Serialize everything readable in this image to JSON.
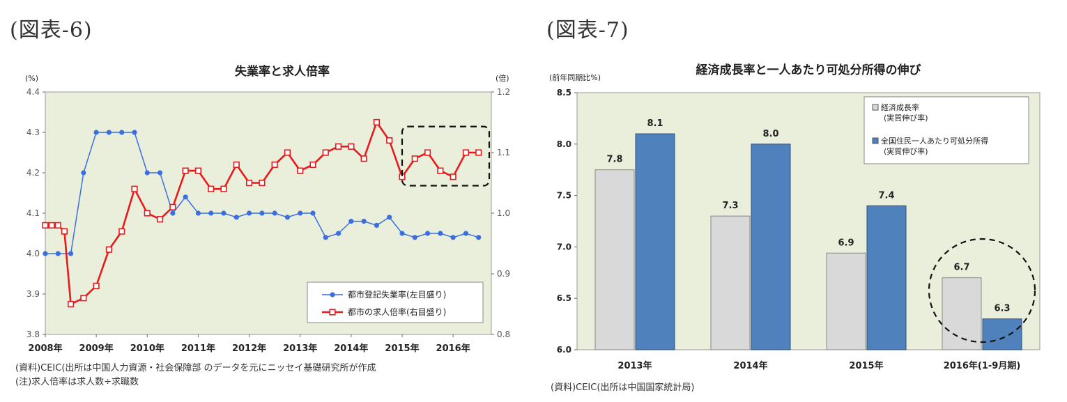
{
  "figure6_label": "(図表-6)",
  "figure7_label": "(図表-7)",
  "chart_data": [
    {
      "type": "line",
      "title": "失業率と求人倍率",
      "left_unit": "(%)",
      "right_unit": "(倍)",
      "ylim_left": [
        3.8,
        4.4
      ],
      "ylim_right": [
        0.8,
        1.2
      ],
      "y_ticks_left": [
        "3.8",
        "3.9",
        "4.0",
        "4.1",
        "4.2",
        "4.3",
        "4.4"
      ],
      "y_ticks_right": [
        "0.8",
        "0.9",
        "1.0",
        "1.1",
        "1.2"
      ],
      "x_ticks": [
        "2008年",
        "2009年",
        "2010年",
        "2011年",
        "2012年",
        "2013年",
        "2014年",
        "2015年",
        "2016年"
      ],
      "x_start": 2008.0,
      "x_end": 2016.75,
      "legend_position": "bottom-right",
      "series": [
        {
          "name": "都市登記失業率(左目盛り)",
          "axis": "left",
          "color": "#3b6fe0",
          "marker": "circle",
          "x": [
            2008.0,
            2008.25,
            2008.5,
            2008.75,
            2009.0,
            2009.25,
            2009.5,
            2009.75,
            2010.0,
            2010.25,
            2010.5,
            2010.75,
            2011.0,
            2011.25,
            2011.5,
            2011.75,
            2012.0,
            2012.25,
            2012.5,
            2012.75,
            2013.0,
            2013.25,
            2013.5,
            2013.75,
            2014.0,
            2014.25,
            2014.5,
            2014.75,
            2015.0,
            2015.25,
            2015.5,
            2015.75,
            2016.0,
            2016.25,
            2016.5
          ],
          "values": [
            4.0,
            4.0,
            4.0,
            4.2,
            4.3,
            4.3,
            4.3,
            4.3,
            4.2,
            4.2,
            4.1,
            4.14,
            4.1,
            4.1,
            4.1,
            4.09,
            4.1,
            4.1,
            4.1,
            4.09,
            4.1,
            4.1,
            4.04,
            4.05,
            4.08,
            4.08,
            4.07,
            4.09,
            4.05,
            4.04,
            4.05,
            4.05,
            4.04,
            4.05,
            4.04
          ]
        },
        {
          "name": "都市の求人倍率(右目盛り)",
          "axis": "right",
          "color": "#e8191b",
          "marker": "square",
          "x": [
            2008.0,
            2008.125,
            2008.25,
            2008.375,
            2008.5,
            2008.75,
            2009.0,
            2009.25,
            2009.5,
            2009.75,
            2010.0,
            2010.25,
            2010.5,
            2010.75,
            2011.0,
            2011.25,
            2011.5,
            2011.75,
            2012.0,
            2012.25,
            2012.5,
            2012.75,
            2013.0,
            2013.25,
            2013.5,
            2013.75,
            2014.0,
            2014.25,
            2014.5,
            2014.75,
            2015.0,
            2015.25,
            2015.5,
            2015.75,
            2016.0,
            2016.25,
            2016.5
          ],
          "values": [
            0.98,
            0.98,
            0.98,
            0.97,
            0.85,
            0.86,
            0.88,
            0.94,
            0.97,
            1.04,
            1.0,
            0.99,
            1.01,
            1.07,
            1.07,
            1.04,
            1.04,
            1.08,
            1.05,
            1.05,
            1.08,
            1.1,
            1.07,
            1.08,
            1.1,
            1.11,
            1.11,
            1.09,
            1.15,
            1.12,
            1.06,
            1.09,
            1.1,
            1.07,
            1.06,
            1.1,
            1.1
          ]
        }
      ],
      "highlight": "dashed rounded box around 2015–2016 求人倍率"
    },
    {
      "type": "bar",
      "title": "経済成長率と一人あたり可処分所得の伸び",
      "unit": "(前年同期比%)",
      "ylim": [
        6.0,
        8.5
      ],
      "y_ticks": [
        "6.0",
        "6.5",
        "7.0",
        "7.5",
        "8.0",
        "8.5"
      ],
      "categories": [
        "2013年",
        "2014年",
        "2015年",
        "2016年(1-9月期)"
      ],
      "legend_position": "top-right",
      "series": [
        {
          "name": "経済成長率 (実質伸び率)",
          "color": "#d9d9d9",
          "values": [
            7.75,
            7.3,
            6.94,
            6.7
          ],
          "labels": [
            "7.8",
            "7.3",
            "6.9",
            "6.7"
          ]
        },
        {
          "name": "全国住民一人あたり可処分所得 (実質伸び率)",
          "color": "#4f81bd",
          "values": [
            8.1,
            8.0,
            7.4,
            6.3
          ],
          "labels": [
            "8.1",
            "8.0",
            "7.4",
            "6.3"
          ]
        }
      ],
      "highlight": "dashed circle around 2016年(1-9月期)"
    }
  ],
  "notes": {
    "fig6_source": "(資料)CEIC(出所は中国人力資源・社会保障部 のデータを元にニッセイ基礎研究所が作成",
    "fig6_note": "(注)求人倍率は求人数÷求職数",
    "fig7_source": "(資料)CEIC(出所は中国国家統計局)"
  }
}
